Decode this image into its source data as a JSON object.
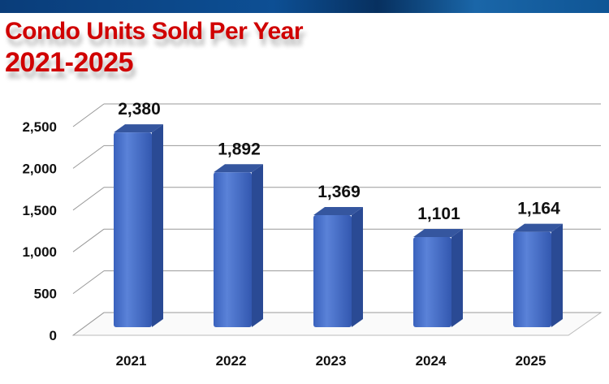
{
  "chart_data": {
    "type": "bar",
    "title": "Condo Units Sold Per Year",
    "subtitle": "2021-2025",
    "categories": [
      "2021",
      "2022",
      "2023",
      "2024",
      "2025"
    ],
    "values": [
      2380,
      1892,
      1369,
      1101,
      1164
    ],
    "data_labels": [
      "2,380",
      "1,892",
      "1,369",
      "1,101",
      "1,164"
    ],
    "yticks": [
      0,
      500,
      1000,
      1500,
      2000,
      2500
    ],
    "ytick_labels": [
      "0",
      "500",
      "1,000",
      "1,500",
      "2,000",
      "2,500"
    ],
    "ylim": [
      0,
      2500
    ],
    "grid": true,
    "style": "3d",
    "colors": {
      "bar": "#4169c4",
      "bar_side": "#2a4a94",
      "bar_top": "#35569f",
      "title": "#d00000"
    }
  }
}
